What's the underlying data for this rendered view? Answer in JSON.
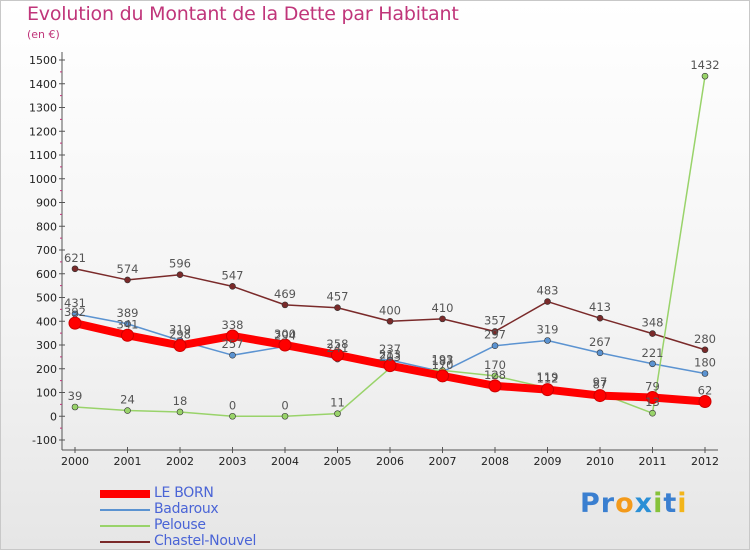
{
  "header": {
    "title": "Evolution du Montant de la Dette par Habitant",
    "subtitle": "(en €)"
  },
  "colors": {
    "title": "#c0357a",
    "axis": "#555555",
    "legend_text": "#4a64d6"
  },
  "logo": {
    "parts": [
      {
        "text": "Pr",
        "color": "#3a7fd0"
      },
      {
        "text": "o",
        "color": "#f39a1a"
      },
      {
        "text": "x",
        "color": "#2a8fd6"
      },
      {
        "text": "i",
        "color": "#86c23a"
      },
      {
        "text": "t",
        "color": "#3a7fd0"
      },
      {
        "text": "i",
        "color": "#f3b51a"
      }
    ]
  },
  "chart_data": {
    "type": "line",
    "title": "Evolution du Montant de la Dette par Habitant",
    "subtitle": "(en €)",
    "x": [
      2000,
      2001,
      2002,
      2003,
      2004,
      2005,
      2006,
      2007,
      2008,
      2009,
      2010,
      2011,
      2012
    ],
    "ylim": [
      -100,
      1500
    ],
    "yticks": [
      -100,
      0,
      100,
      200,
      300,
      400,
      500,
      600,
      700,
      800,
      900,
      1000,
      1100,
      1200,
      1300,
      1400,
      1500
    ],
    "grid": false,
    "legend_position": "bottom-left",
    "series": [
      {
        "name": "LE BORN",
        "color": "#ff0000",
        "line_width": 8,
        "values": [
          392,
          341,
          298,
          338,
          300,
          258,
          213,
          170,
          128,
          112,
          87,
          79,
          62
        ],
        "labels": [
          "392",
          "341",
          "298",
          "338",
          "300",
          "258",
          "213",
          "170",
          "128",
          "112",
          "87",
          "79",
          "62"
        ]
      },
      {
        "name": "Badaroux",
        "color": "#5b93d1",
        "line_width": 1.5,
        "values": [
          431,
          389,
          319,
          257,
          294,
          241,
          237,
          187,
          297,
          319,
          267,
          221,
          180
        ],
        "labels": [
          "431",
          "389",
          "319",
          "257",
          "294",
          "241",
          "237",
          "187",
          "297",
          "319",
          "267",
          "221",
          "180"
        ]
      },
      {
        "name": "Pelouse",
        "color": "#99d36a",
        "line_width": 1.5,
        "values": [
          39,
          24,
          18,
          0,
          0,
          11,
          203,
          193,
          170,
          119,
          97,
          13,
          1432
        ],
        "labels": [
          "39",
          "24",
          "18",
          "0",
          "0",
          "11",
          "203",
          "193",
          "170",
          "119",
          "97",
          "13",
          "1432"
        ]
      },
      {
        "name": "Chastel-Nouvel",
        "color": "#7a2a2a",
        "line_width": 1.5,
        "values": [
          621,
          574,
          596,
          547,
          469,
          457,
          400,
          410,
          357,
          483,
          413,
          348,
          280
        ],
        "labels": [
          "621",
          "574",
          "596",
          "547",
          "469",
          "457",
          "400",
          "410",
          "357",
          "483",
          "413",
          "348",
          "280"
        ]
      }
    ]
  }
}
